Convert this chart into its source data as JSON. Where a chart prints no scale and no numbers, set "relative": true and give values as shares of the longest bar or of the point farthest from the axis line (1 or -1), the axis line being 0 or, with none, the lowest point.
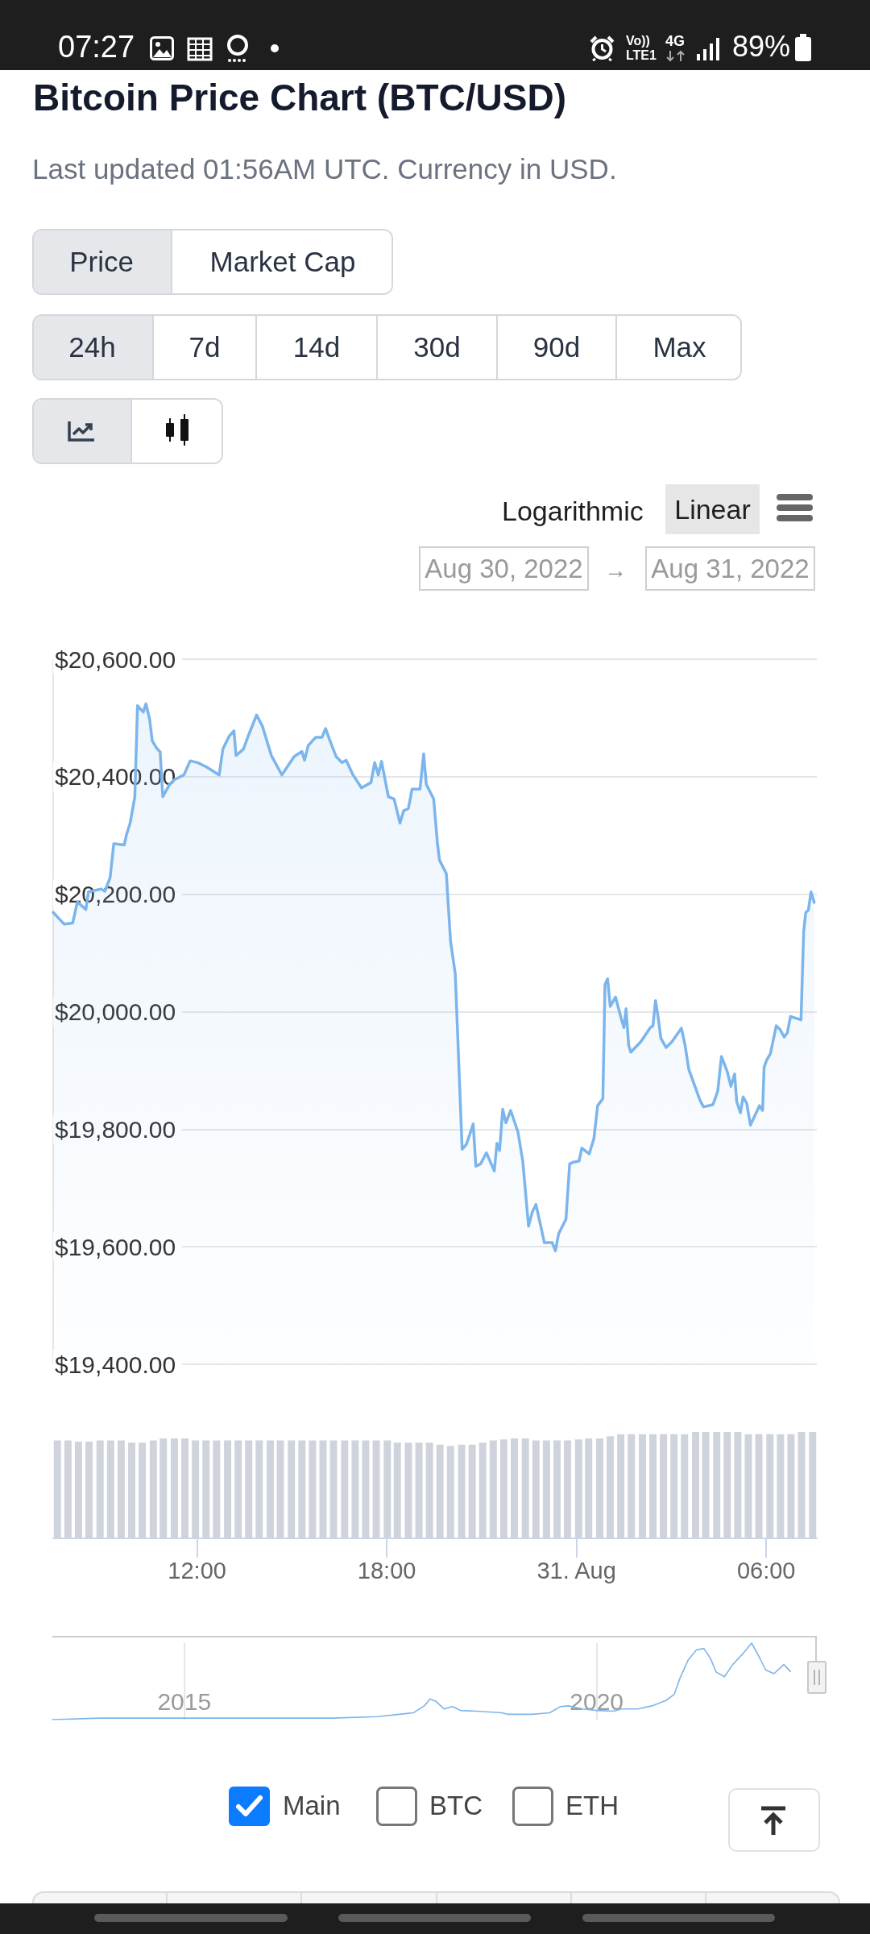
{
  "chart_data": [
    {
      "type": "area",
      "title": "Bitcoin Price Chart (BTC/USD)",
      "subtitle": "Last updated 01:56AM UTC. Currency in USD.",
      "annotations": [
        "07:27",
        "Vo))",
        "LTE1",
        "4G",
        "89%",
        "Price",
        "Market Cap",
        "24h",
        "7d",
        "14d",
        "30d",
        "90d",
        "Max",
        "Logarithmic",
        "Linear",
        "Aug 30, 2022",
        "→",
        "Aug 31, 2022"
      ],
      "x": [
        "2022-08-30T07:27",
        "2022-08-30T07:48",
        "2022-08-30T08:04",
        "2022-08-30T08:13",
        "2022-08-30T08:29",
        "2022-08-30T08:34",
        "2022-08-30T08:58",
        "2022-08-30T09:05",
        "2022-08-30T09:15",
        "2022-08-30T09:22",
        "2022-08-30T09:42",
        "2022-08-30T09:46",
        "2022-08-30T09:53",
        "2022-08-30T10:02",
        "2022-08-30T10:07",
        "2022-08-30T10:18",
        "2022-08-30T10:23",
        "2022-08-30T10:30",
        "2022-08-30T10:35",
        "2022-08-30T10:43",
        "2022-08-30T10:50",
        "2022-08-30T10:55",
        "2022-08-30T11:08",
        "2022-08-30T11:17",
        "2022-08-30T11:35",
        "2022-08-30T11:47",
        "2022-08-30T12:01",
        "2022-08-30T12:19",
        "2022-08-30T12:42",
        "2022-08-30T12:49",
        "2022-08-30T13:01",
        "2022-08-30T13:10",
        "2022-08-30T13:14",
        "2022-08-30T13:28",
        "2022-08-30T13:37",
        "2022-08-30T13:53",
        "2022-08-30T14:04",
        "2022-08-30T14:21",
        "2022-08-30T14:41",
        "2022-08-30T15:04",
        "2022-08-30T15:19",
        "2022-08-30T15:24",
        "2022-08-30T15:31",
        "2022-08-30T15:45",
        "2022-08-30T15:57",
        "2022-08-30T16:04",
        "2022-08-30T16:11",
        "2022-08-30T16:24",
        "2022-08-30T16:35",
        "2022-08-30T16:43",
        "2022-08-30T16:56",
        "2022-08-30T17:12",
        "2022-08-30T17:30",
        "2022-08-30T17:37",
        "2022-08-30T17:44",
        "2022-08-30T17:50",
        "2022-08-30T18:03",
        "2022-08-30T18:14",
        "2022-08-30T18:25",
        "2022-08-30T18:32",
        "2022-08-30T18:41",
        "2022-08-30T18:48",
        "2022-08-30T19:03",
        "2022-08-30T19:10",
        "2022-08-30T19:15",
        "2022-08-30T19:29",
        "2022-08-30T19:36",
        "2022-08-30T19:40",
        "2022-08-30T19:53",
        "2022-08-30T20:01",
        "2022-08-30T20:10",
        "2022-08-30T20:23",
        "2022-08-30T20:31",
        "2022-08-30T20:44",
        "2022-08-30T20:49",
        "2022-08-30T20:58",
        "2022-08-30T21:09",
        "2022-08-30T21:24",
        "2022-08-30T21:29",
        "2022-08-30T21:34",
        "2022-08-30T21:40",
        "2022-08-30T21:46",
        "2022-08-30T21:55",
        "2022-08-30T22:09",
        "2022-08-30T22:18",
        "2022-08-30T22:29",
        "2022-08-30T22:36",
        "2022-08-30T22:43",
        "2022-08-30T22:50",
        "2022-08-30T22:59",
        "2022-08-30T23:14",
        "2022-08-30T23:20",
        "2022-08-30T23:26",
        "2022-08-30T23:40",
        "2022-08-30T23:47",
        "2022-08-30T23:54",
        "2022-08-31T00:05",
        "2022-08-31T00:10",
        "2022-08-31T00:24",
        "2022-08-31T00:33",
        "2022-08-31T00:40",
        "2022-08-31T00:50",
        "2022-08-31T00:54",
        "2022-08-31T00:59",
        "2022-08-31T01:04",
        "2022-08-31T01:14",
        "2022-08-31T01:25",
        "2022-08-31T01:30",
        "2022-08-31T01:34",
        "2022-08-31T01:39",
        "2022-08-31T01:43",
        "2022-08-31T02:02",
        "2022-08-31T02:20",
        "2022-08-31T02:25",
        "2022-08-31T02:30",
        "2022-08-31T02:35",
        "2022-08-31T02:40",
        "2022-08-31T02:50",
        "2022-08-31T03:01",
        "2022-08-31T03:19",
        "2022-08-31T03:26",
        "2022-08-31T03:33",
        "2022-08-31T03:54",
        "2022-08-31T04:01",
        "2022-08-31T04:19",
        "2022-08-31T04:28",
        "2022-08-31T04:35",
        "2022-08-31T04:46",
        "2022-08-31T04:53",
        "2022-08-31T05:00",
        "2022-08-31T05:04",
        "2022-08-31T05:11",
        "2022-08-31T05:16",
        "2022-08-31T05:23",
        "2022-08-31T05:30",
        "2022-08-31T05:47",
        "2022-08-31T05:53",
        "2022-08-31T05:56",
        "2022-08-31T06:01",
        "2022-08-31T06:08",
        "2022-08-31T06:19",
        "2022-08-31T06:26",
        "2022-08-31T06:34",
        "2022-08-31T06:40",
        "2022-08-31T06:46",
        "2022-08-31T07:06",
        "2022-08-31T07:11",
        "2022-08-31T07:15",
        "2022-08-31T07:20",
        "2022-08-31T07:25",
        "2022-08-31T07:31"
      ],
      "values": [
        20169,
        20149,
        20151,
        20187,
        20174,
        20204,
        20209,
        20205,
        20228,
        20286,
        20284,
        20301,
        20321,
        20366,
        20521,
        20510,
        20524,
        20498,
        20461,
        20449,
        20442,
        20366,
        20387,
        20395,
        20403,
        20427,
        20424,
        20416,
        20403,
        20447,
        20469,
        20478,
        20436,
        20447,
        20469,
        20505,
        20486,
        20436,
        20403,
        20434,
        20443,
        20428,
        20453,
        20467,
        20467,
        20482,
        20464,
        20434,
        20424,
        20428,
        20403,
        20381,
        20390,
        20424,
        20403,
        20426,
        20366,
        20362,
        20321,
        20342,
        20346,
        20379,
        20379,
        20439,
        20387,
        20362,
        20288,
        20258,
        20235,
        20120,
        20064,
        19766,
        19774,
        19809,
        19737,
        19741,
        19760,
        19729,
        19776,
        19764,
        19834,
        19811,
        19832,
        19795,
        19746,
        19635,
        19659,
        19672,
        19644,
        19607,
        19607,
        19593,
        19622,
        19647,
        19741,
        19744,
        19746,
        19768,
        19758,
        19784,
        19840,
        19852,
        20046,
        20056,
        20009,
        20025,
        19988,
        19973,
        20005,
        19943,
        19931,
        19949,
        19973,
        19976,
        20019,
        19990,
        19955,
        19939,
        19949,
        19972,
        19943,
        19902,
        19850,
        19838,
        19842,
        19865,
        19924,
        19898,
        19873,
        19894,
        19847,
        19828,
        19855,
        19844,
        19807,
        19840,
        19832,
        19906,
        19918,
        19929,
        19976,
        19970,
        19957,
        19964,
        19992,
        19986,
        20136,
        20169,
        20173,
        20204,
        20186
      ],
      "color": "#7cb5ec",
      "xlim": [
        "2022-08-30T07:27",
        "2022-08-31T07:36"
      ],
      "ylim": [
        19400,
        20600
      ],
      "yticks": [
        {
          "value": 19400,
          "label": "$19,400.00"
        },
        {
          "value": 19600,
          "label": "$19,600.00"
        },
        {
          "value": 19800,
          "label": "$19,800.00"
        },
        {
          "value": 20000,
          "label": "$20,000.00"
        },
        {
          "value": 20200,
          "label": "$20,200.00"
        },
        {
          "value": 20400,
          "label": "$20,400.00"
        },
        {
          "value": 20600,
          "label": "$20,600.00"
        }
      ],
      "grid": "y",
      "tick_labels": "y"
    },
    {
      "type": "bar",
      "relative": true,
      "x": [
        "2022-08-30T07:35",
        "2022-08-30T07:55",
        "2022-08-30T08:15",
        "2022-08-30T08:35",
        "2022-08-30T08:56",
        "2022-08-30T09:16",
        "2022-08-30T09:36",
        "2022-08-30T09:56",
        "2022-08-30T10:16",
        "2022-08-30T10:37",
        "2022-08-30T10:56",
        "2022-08-30T11:17",
        "2022-08-30T11:37",
        "2022-08-30T11:57",
        "2022-08-30T12:17",
        "2022-08-30T12:37",
        "2022-08-30T12:58",
        "2022-08-30T13:18",
        "2022-08-30T13:38",
        "2022-08-30T13:58",
        "2022-08-30T14:19",
        "2022-08-30T14:38",
        "2022-08-30T14:59",
        "2022-08-30T15:19",
        "2022-08-30T15:39",
        "2022-08-30T15:59",
        "2022-08-30T16:19",
        "2022-08-30T16:40",
        "2022-08-30T17:00",
        "2022-08-30T17:20",
        "2022-08-30T17:40",
        "2022-08-30T18:01",
        "2022-08-30T18:20",
        "2022-08-30T18:41",
        "2022-08-30T19:01",
        "2022-08-30T19:21",
        "2022-08-30T19:41",
        "2022-08-30T20:01",
        "2022-08-30T20:22",
        "2022-08-30T20:42",
        "2022-08-30T21:02",
        "2022-08-30T21:22",
        "2022-08-30T21:42",
        "2022-08-30T22:02",
        "2022-08-30T22:23",
        "2022-08-30T22:43",
        "2022-08-30T23:03",
        "2022-08-30T23:23",
        "2022-08-30T23:43",
        "2022-08-31T00:04",
        "2022-08-31T00:23",
        "2022-08-31T00:44",
        "2022-08-31T01:04",
        "2022-08-31T01:24",
        "2022-08-31T01:44",
        "2022-08-31T02:05",
        "2022-08-31T02:25",
        "2022-08-31T02:45",
        "2022-08-31T03:05",
        "2022-08-31T03:25",
        "2022-08-31T03:46",
        "2022-08-31T04:05",
        "2022-08-31T04:26",
        "2022-08-31T04:46",
        "2022-08-31T05:06",
        "2022-08-31T05:26",
        "2022-08-31T05:46",
        "2022-08-31T06:07",
        "2022-08-31T06:27",
        "2022-08-31T06:47",
        "2022-08-31T07:07",
        "2022-08-31T07:28"
      ],
      "values": [
        0.92,
        0.92,
        0.91,
        0.91,
        0.92,
        0.92,
        0.92,
        0.9,
        0.9,
        0.92,
        0.94,
        0.94,
        0.94,
        0.92,
        0.92,
        0.92,
        0.92,
        0.92,
        0.92,
        0.92,
        0.92,
        0.92,
        0.92,
        0.92,
        0.92,
        0.92,
        0.92,
        0.92,
        0.92,
        0.92,
        0.92,
        0.92,
        0.9,
        0.9,
        0.9,
        0.9,
        0.88,
        0.87,
        0.88,
        0.88,
        0.9,
        0.92,
        0.93,
        0.94,
        0.94,
        0.92,
        0.92,
        0.92,
        0.92,
        0.93,
        0.94,
        0.94,
        0.96,
        0.98,
        0.98,
        0.98,
        0.98,
        0.98,
        0.98,
        0.98,
        1,
        1,
        1,
        1,
        1,
        0.98,
        0.98,
        0.98,
        0.98,
        0.98,
        1,
        1
      ],
      "color": "#cfd3dc",
      "xlim": [
        "2022-08-30T07:27",
        "2022-08-31T07:36"
      ],
      "xticks": [
        {
          "value": "2022-08-30T12:00",
          "label": "12:00"
        },
        {
          "value": "2022-08-30T18:00",
          "label": "18:00"
        },
        {
          "value": "2022-08-31T00:00",
          "label": "31. Aug"
        },
        {
          "value": "2022-08-31T06:00",
          "label": "06:00"
        }
      ],
      "tick_labels": "x"
    },
    {
      "type": "line",
      "relative": true,
      "x": [
        2013.4,
        2013.97,
        2015,
        2016.8,
        2017.34,
        2017.61,
        2017.78,
        2017.91,
        2017.98,
        2018.05,
        2018.15,
        2018.25,
        2018.35,
        2018.55,
        2018.85,
        2018.92,
        2019.22,
        2019.43,
        2019.56,
        2019.66,
        2019.83,
        2020,
        2020.2,
        2020.3,
        2020.5,
        2020.67,
        2020.84,
        2020.94,
        2021.01,
        2021.11,
        2021.21,
        2021.3,
        2021.38,
        2021.45,
        2021.55,
        2021.65,
        2021.78,
        2021.88,
        2021.98,
        2022.05,
        2022.15,
        2022.27,
        2022.35
      ],
      "values": [
        0,
        0.02,
        0.02,
        0.02,
        0.04,
        0.07,
        0.09,
        0.18,
        0.27,
        0.24,
        0.14,
        0.17,
        0.12,
        0.11,
        0.09,
        0.07,
        0.07,
        0.09,
        0.17,
        0.18,
        0.14,
        0.12,
        0.11,
        0.14,
        0.14,
        0.18,
        0.25,
        0.33,
        0.54,
        0.78,
        0.91,
        0.93,
        0.8,
        0.62,
        0.56,
        0.72,
        0.87,
        1,
        0.8,
        0.65,
        0.6,
        0.72,
        0.63
      ],
      "color": "#7cb5ec",
      "xlim": [
        2013.4,
        2022.67
      ],
      "xticks": [
        2015,
        2020
      ],
      "grid": "x",
      "annotations": [
        "Main",
        "BTC",
        "ETH"
      ]
    }
  ]
}
